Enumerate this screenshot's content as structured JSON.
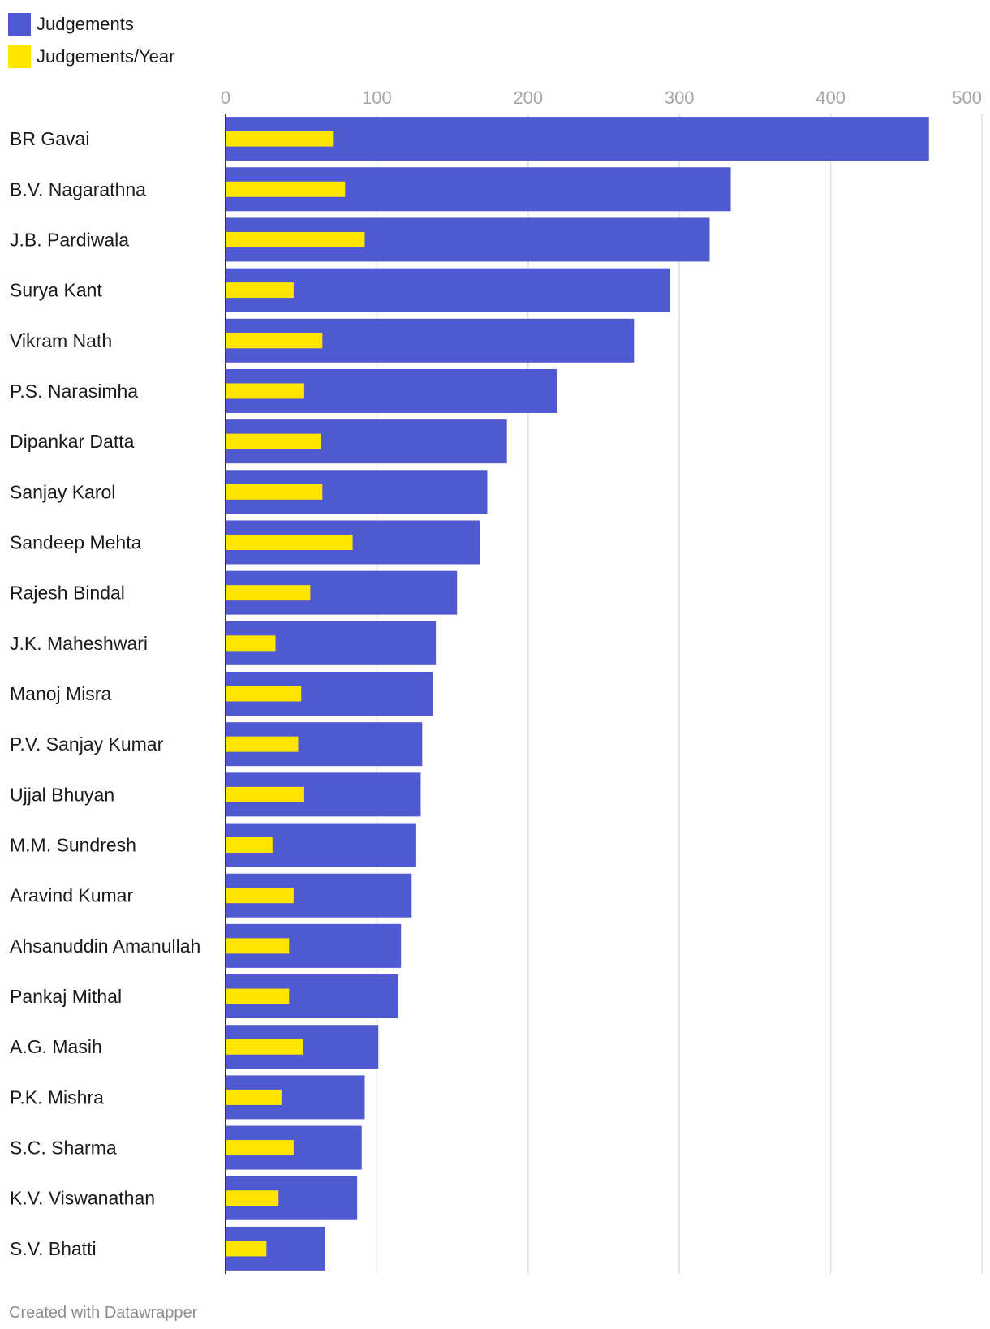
{
  "legend": {
    "items": [
      {
        "label": "Judgements",
        "color": "#4f5ad2"
      },
      {
        "label": "Judgements/Year",
        "color": "#ffe500"
      }
    ]
  },
  "chart_data": {
    "type": "bar",
    "orientation": "horizontal",
    "title": "",
    "xlabel": "",
    "ylabel": "",
    "xlim": [
      0,
      500
    ],
    "ticks": [
      0,
      100,
      200,
      300,
      400,
      500
    ],
    "grid": true,
    "legend_position": "top-left",
    "categories": [
      "BR Gavai",
      "B.V. Nagarathna",
      "J.B. Pardiwala",
      "Surya Kant",
      "Vikram Nath",
      "P.S. Narasimha",
      "Dipankar Datta",
      "Sanjay Karol",
      "Sandeep Mehta",
      "Rajesh Bindal",
      "J.K. Maheshwari",
      "Manoj Misra",
      "P.V. Sanjay Kumar",
      "Ujjal Bhuyan",
      "M.M. Sundresh",
      "Aravind Kumar",
      "Ahsanuddin Amanullah",
      "Pankaj Mithal",
      "A.G. Masih",
      "P.K. Mishra",
      "S.C. Sharma",
      "K.V. Viswanathan",
      "S.V. Bhatti"
    ],
    "series": [
      {
        "name": "Judgements",
        "color": "#4f5ad2",
        "values": [
          465,
          334,
          320,
          294,
          270,
          219,
          186,
          173,
          168,
          153,
          139,
          137,
          130,
          129,
          126,
          123,
          116,
          114,
          101,
          92,
          90,
          87,
          66
        ]
      },
      {
        "name": "Judgements/Year",
        "color": "#ffe500",
        "values": [
          71,
          79,
          92,
          45,
          64,
          52,
          63,
          64,
          84,
          56,
          33,
          50,
          48,
          52,
          31,
          45,
          42,
          42,
          51,
          37,
          45,
          35,
          27
        ]
      }
    ]
  },
  "footer": {
    "credit": "Created with Datawrapper"
  }
}
